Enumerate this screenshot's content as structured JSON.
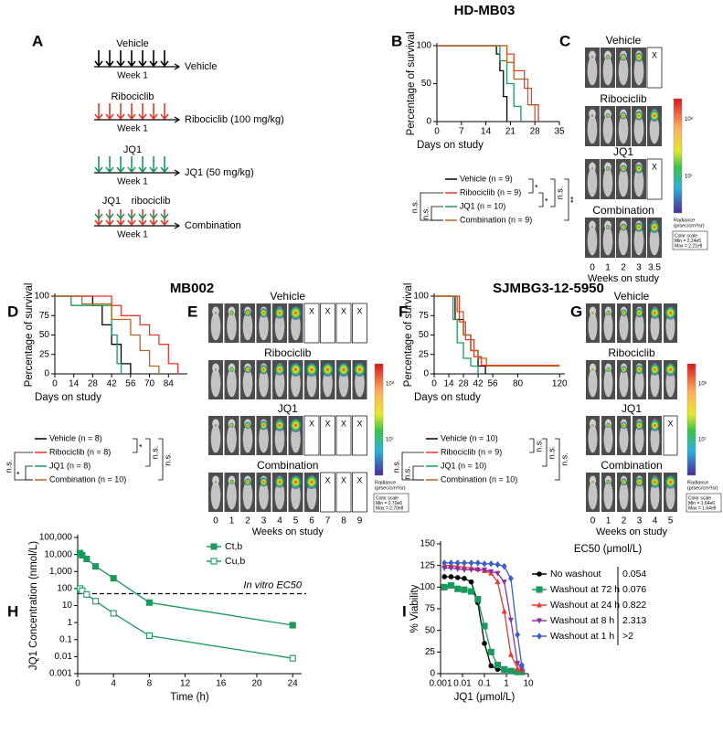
{
  "headers": [
    "HD-MB03",
    "MB002",
    "SJMBG3-12-5950"
  ],
  "schedule": {
    "panel": "A",
    "week_label": "Week 1",
    "rows": [
      {
        "drug": "Vehicle",
        "arm": "Vehicle"
      },
      {
        "drug": "Ribociclib",
        "arm": "Ribociclib (100 mg/kg)"
      },
      {
        "drug": "JQ1",
        "arm": "JQ1 (50 mg/kg)"
      },
      {
        "drug": "JQ1",
        "drug2": "ribociclib",
        "arm": "Combination"
      }
    ]
  },
  "imaging": [
    {
      "panel": "C",
      "columns": [
        "0",
        "1",
        "2",
        "3",
        "3.5"
      ],
      "x_label": "Weeks on study",
      "groups": [
        {
          "label": "Vehicle",
          "cells": [
            null,
            null,
            null,
            null,
            "X"
          ]
        },
        {
          "label": "Ribociclib",
          "cells": [
            null,
            null,
            null,
            null,
            null
          ]
        },
        {
          "label": "JQ1",
          "cells": [
            null,
            null,
            null,
            null,
            "X"
          ]
        },
        {
          "label": "Combination",
          "cells": [
            null,
            null,
            null,
            null,
            null
          ]
        }
      ],
      "colorbar_ticks": [
        "10⁸",
        "10⁷"
      ],
      "colorbar_title": [
        "Radiance",
        "(p/sec/cm²/sr)"
      ],
      "color_scale": [
        "Color scale",
        "Min = 2.24e5",
        "Max = 2.21e8"
      ]
    },
    {
      "panel": "E",
      "columns": [
        "0",
        "1",
        "2",
        "3",
        "4",
        "5",
        "6",
        "7",
        "8",
        "9"
      ],
      "x_label": "Weeks on study",
      "groups": [
        {
          "label": "Vehicle",
          "cells": [
            null,
            null,
            null,
            null,
            null,
            null,
            "X",
            "X",
            "X",
            "X"
          ]
        },
        {
          "label": "Ribociclib",
          "cells": [
            null,
            null,
            null,
            null,
            null,
            null,
            null,
            null,
            null,
            null
          ]
        },
        {
          "label": "JQ1",
          "cells": [
            null,
            null,
            null,
            null,
            null,
            null,
            "X",
            "X",
            "X",
            "X"
          ]
        },
        {
          "label": "Combination",
          "cells": [
            null,
            null,
            null,
            null,
            null,
            null,
            null,
            "X",
            "X",
            "X"
          ]
        }
      ],
      "colorbar_ticks": [
        "10⁸",
        "10⁷"
      ],
      "colorbar_title": [
        "Radiance",
        "(p/sec/cm²/sr)"
      ],
      "color_scale": [
        "Color scale",
        "Min = 2.70e6",
        "Max = 2.70e8"
      ]
    },
    {
      "panel": "G",
      "columns": [
        "0",
        "1",
        "2",
        "3",
        "4",
        "5"
      ],
      "x_label": "Weeks on study",
      "groups": [
        {
          "label": "Vehicle",
          "cells": [
            null,
            null,
            null,
            null,
            null,
            null
          ]
        },
        {
          "label": "Ribociclib",
          "cells": [
            null,
            null,
            null,
            null,
            null,
            null
          ]
        },
        {
          "label": "JQ1",
          "cells": [
            null,
            null,
            null,
            null,
            null,
            "X"
          ]
        },
        {
          "label": "Combination",
          "cells": [
            null,
            null,
            null,
            null,
            null,
            null
          ]
        }
      ],
      "colorbar_ticks": [
        "10⁸",
        "10⁷"
      ],
      "colorbar_title": [
        "Radiance",
        "(p/sec/cm²/sr)"
      ],
      "color_scale": [
        "Color scale",
        "Min = 1.64e6",
        "Max = 1.64e8"
      ]
    }
  ],
  "chart_data": [
    {
      "panel": "B",
      "type": "line",
      "y_label": "Percentage of survival",
      "x_label": "Days on study",
      "xlim": [
        0,
        35
      ],
      "xticks": [
        0,
        7,
        14,
        21,
        28,
        35
      ],
      "ylim": [
        0,
        100
      ],
      "yticks": [
        0,
        50,
        100
      ],
      "series": [
        {
          "name": "Vehicle (n = 9)",
          "color": "#000000",
          "x": [
            0,
            17,
            17,
            18,
            18,
            19,
            19,
            20,
            20
          ],
          "values": [
            100,
            100,
            89,
            89,
            67,
            67,
            33,
            33,
            0
          ]
        },
        {
          "name": "Ribociclib (n = 9)",
          "color": "#e8392c",
          "x": [
            0,
            20,
            20,
            22,
            22,
            25,
            25,
            27,
            27,
            29,
            29
          ],
          "values": [
            100,
            100,
            89,
            89,
            67,
            67,
            44,
            44,
            22,
            22,
            0
          ]
        },
        {
          "name": "JQ1 (n = 10)",
          "color": "#1a9a5c",
          "x": [
            0,
            18,
            18,
            20,
            20,
            22,
            22,
            24,
            24
          ],
          "values": [
            100,
            100,
            80,
            80,
            50,
            50,
            20,
            20,
            0
          ]
        },
        {
          "name": "Combination (n = 9)",
          "color": "#b5651d",
          "x": [
            0,
            20,
            20,
            22,
            22,
            26,
            26,
            28,
            28
          ],
          "values": [
            100,
            100,
            78,
            78,
            56,
            56,
            22,
            22,
            0
          ]
        }
      ],
      "stats": [
        "*",
        "*",
        "n.s.",
        "**",
        "n.s.",
        "n.s."
      ]
    },
    {
      "panel": "D",
      "type": "line",
      "y_label": "Percentage of survival",
      "x_label": "Days on study",
      "xlim": [
        0,
        98
      ],
      "xticks": [
        0,
        14,
        28,
        42,
        56,
        70,
        84
      ],
      "ylim": [
        0,
        100
      ],
      "yticks": [
        0,
        25,
        50,
        75,
        100
      ],
      "series": [
        {
          "name": "Vehicle (n = 8)",
          "color": "#000000",
          "x": [
            0,
            28,
            28,
            35,
            35,
            42,
            42,
            49,
            49,
            56,
            56
          ],
          "values": [
            100,
            100,
            88,
            88,
            63,
            63,
            38,
            38,
            13,
            13,
            0
          ]
        },
        {
          "name": "Ribociclib (n = 8)",
          "color": "#e8392c",
          "x": [
            0,
            42,
            42,
            49,
            49,
            63,
            63,
            70,
            70,
            77,
            77,
            84,
            84,
            91,
            91
          ],
          "values": [
            100,
            100,
            88,
            88,
            75,
            75,
            63,
            63,
            50,
            50,
            38,
            38,
            13,
            13,
            0
          ]
        },
        {
          "name": "JQ1 (n = 8)",
          "color": "#1a9a5c",
          "x": [
            0,
            12,
            12,
            42,
            42,
            46,
            46,
            49,
            49
          ],
          "values": [
            100,
            100,
            88,
            88,
            50,
            50,
            13,
            13,
            0
          ]
        },
        {
          "name": "Combination (n = 10)",
          "color": "#b5651d",
          "x": [
            0,
            20,
            20,
            42,
            42,
            56,
            56,
            63,
            63,
            70,
            70,
            77,
            77
          ],
          "values": [
            100,
            100,
            90,
            90,
            70,
            70,
            50,
            50,
            30,
            30,
            10,
            10,
            0
          ]
        }
      ],
      "stats": [
        "*",
        "n.s.",
        "n.s.",
        "n.s.",
        "*"
      ]
    },
    {
      "panel": "F",
      "type": "line",
      "y_label": "Percentage of survival",
      "x_label": "Days on study",
      "xlim": [
        0,
        125
      ],
      "xticks": [
        0,
        14,
        28,
        42,
        56,
        80,
        120
      ],
      "ylim": [
        0,
        100
      ],
      "yticks": [
        0,
        25,
        50,
        75,
        100
      ],
      "series": [
        {
          "name": "Vehicle (n = 10)",
          "color": "#000000",
          "x": [
            0,
            20,
            20,
            28,
            28,
            35,
            35,
            42,
            42,
            49,
            49
          ],
          "values": [
            100,
            100,
            70,
            70,
            50,
            50,
            30,
            30,
            10,
            10,
            0
          ]
        },
        {
          "name": "Ribociclib (n = 9)",
          "color": "#e8392c",
          "x": [
            0,
            24,
            24,
            30,
            30,
            38,
            38,
            45,
            45,
            120
          ],
          "values": [
            100,
            100,
            67,
            67,
            44,
            44,
            22,
            22,
            11,
            11
          ]
        },
        {
          "name": "JQ1 (n = 10)",
          "color": "#1a9a5c",
          "x": [
            0,
            18,
            18,
            22,
            22,
            28,
            28,
            35,
            35,
            42,
            42
          ],
          "values": [
            100,
            100,
            70,
            70,
            40,
            40,
            20,
            20,
            10,
            10,
            0
          ]
        },
        {
          "name": "Combination (n = 10)",
          "color": "#b5651d",
          "x": [
            0,
            22,
            22,
            28,
            28,
            35,
            35,
            42,
            42,
            50,
            50,
            120
          ],
          "values": [
            100,
            100,
            80,
            80,
            50,
            50,
            30,
            30,
            20,
            20,
            10,
            10
          ]
        }
      ],
      "stats": [
        "n.s.",
        "n.s.",
        "n.s.",
        "n.s.",
        "n.s."
      ]
    },
    {
      "panel": "H",
      "type": "line",
      "y_label": "JQ1 Concentration (nmol/L)",
      "x_label": "Time (h)",
      "ylog": true,
      "ylim": [
        0.001,
        100000
      ],
      "yticks": [
        0.001,
        0.01,
        0.1,
        1,
        10,
        100,
        {
          "value": 1000,
          "label": "1,000"
        },
        {
          "value": 10000,
          "label": "10,000"
        },
        {
          "value": 100000,
          "label": "100,000"
        }
      ],
      "xlim": [
        0,
        25
      ],
      "xticks": [
        0,
        4,
        8,
        12,
        16,
        20,
        24
      ],
      "reference_line": {
        "value": 50,
        "label": "In vitro EC50"
      },
      "series": [
        {
          "name": "Ct,b",
          "color": "#1a9a5c",
          "marker": "filled-square",
          "x": [
            0.25,
            0.5,
            1,
            2,
            4,
            8,
            24
          ],
          "values": [
            12000,
            9000,
            5500,
            2000,
            400,
            15,
            0.7
          ]
        },
        {
          "name": "Cu,b",
          "color": "#1a9a5c",
          "marker": "open-square",
          "x": [
            0.25,
            0.5,
            1,
            2,
            4,
            8,
            24
          ],
          "values": [
            100,
            75,
            45,
            18,
            3.5,
            0.17,
            0.008
          ]
        }
      ]
    },
    {
      "panel": "I",
      "type": "line",
      "y_label": "% Viability",
      "x_label": "JQ1 (μmol/L)",
      "xlog": true,
      "xlim": [
        0.001,
        10
      ],
      "xticks": [
        0.001,
        0.01,
        0.1,
        1,
        10
      ],
      "ylim": [
        0,
        150
      ],
      "yticks": [
        0,
        25,
        50,
        75,
        100,
        125,
        150
      ],
      "legend_title": "EC50 (μmol/L)",
      "series": [
        {
          "name": "No washout",
          "color": "#000000",
          "marker": "circle",
          "ec50": "0.054",
          "x": [
            0.0015,
            0.003,
            0.006,
            0.012,
            0.025,
            0.05,
            0.1,
            0.2,
            0.4,
            0.8,
            1.6,
            3.2,
            5
          ],
          "values": [
            112,
            112,
            111,
            110,
            106,
            82,
            35,
            9,
            5,
            4,
            3,
            2,
            2
          ]
        },
        {
          "name": "Washout at 72 h",
          "color": "#1a9a5c",
          "marker": "filled-square",
          "ec50": "0.076",
          "x": [
            0.0015,
            0.003,
            0.006,
            0.012,
            0.025,
            0.05,
            0.1,
            0.2,
            0.4,
            0.8,
            1.6,
            3.2,
            5
          ],
          "values": [
            100,
            102,
            98,
            97,
            95,
            86,
            55,
            25,
            10,
            5,
            3,
            2,
            2
          ]
        },
        {
          "name": "Washout at 24 h",
          "color": "#e8392c",
          "marker": "triangle",
          "ec50": "0.822",
          "x": [
            0.0015,
            0.003,
            0.006,
            0.012,
            0.025,
            0.05,
            0.1,
            0.2,
            0.4,
            0.8,
            1.6,
            3.2,
            5
          ],
          "values": [
            125,
            125,
            124,
            123,
            122,
            121,
            119,
            116,
            106,
            72,
            22,
            6,
            4
          ]
        },
        {
          "name": "Washout at 8 h",
          "color": "#8e2fa0",
          "marker": "triangle-down",
          "ec50": "2.313",
          "x": [
            0.0015,
            0.003,
            0.006,
            0.012,
            0.025,
            0.05,
            0.1,
            0.2,
            0.4,
            0.8,
            1.6,
            3.2,
            5
          ],
          "values": [
            122,
            122,
            121,
            120,
            120,
            120,
            120,
            118,
            116,
            106,
            62,
            12,
            6
          ]
        },
        {
          "name": "Washout at 1 h",
          "color": "#3a5fcd",
          "marker": "diamond",
          "ec50": ">2",
          "x": [
            0.0015,
            0.003,
            0.006,
            0.012,
            0.025,
            0.05,
            0.1,
            0.2,
            0.4,
            0.8,
            1.6,
            3.2,
            5
          ],
          "values": [
            128,
            128,
            128,
            128,
            128,
            128,
            127,
            127,
            126,
            124,
            110,
            45,
            10
          ]
        }
      ]
    }
  ]
}
